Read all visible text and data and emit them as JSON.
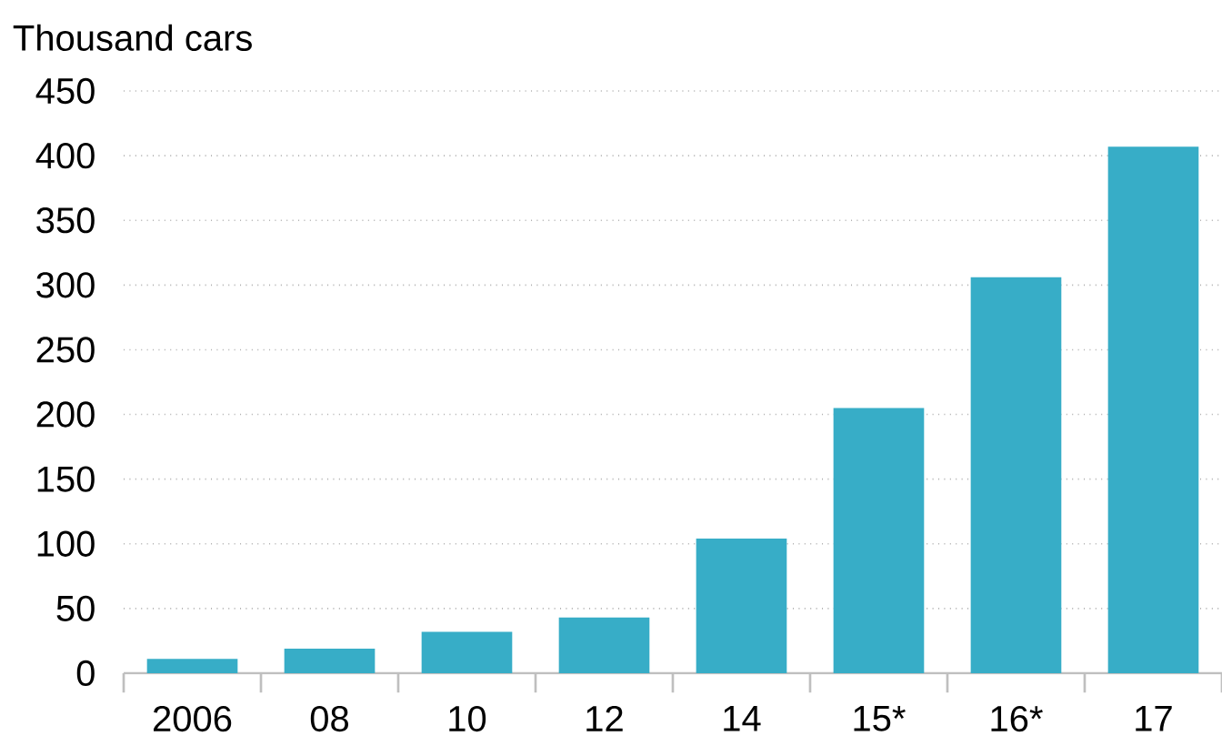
{
  "chart_data": {
    "type": "bar",
    "ylabel": "Thousand cars",
    "categories": [
      "2006",
      "08",
      "10",
      "12",
      "14",
      "15*",
      "16*",
      "17"
    ],
    "values": [
      11,
      19,
      32,
      43,
      104,
      205,
      306,
      407
    ],
    "color": "#37adc7",
    "ylim": [
      0,
      450
    ],
    "yticks": [
      0,
      50,
      100,
      150,
      200,
      250,
      300,
      350,
      400,
      450
    ],
    "grid": "y"
  }
}
